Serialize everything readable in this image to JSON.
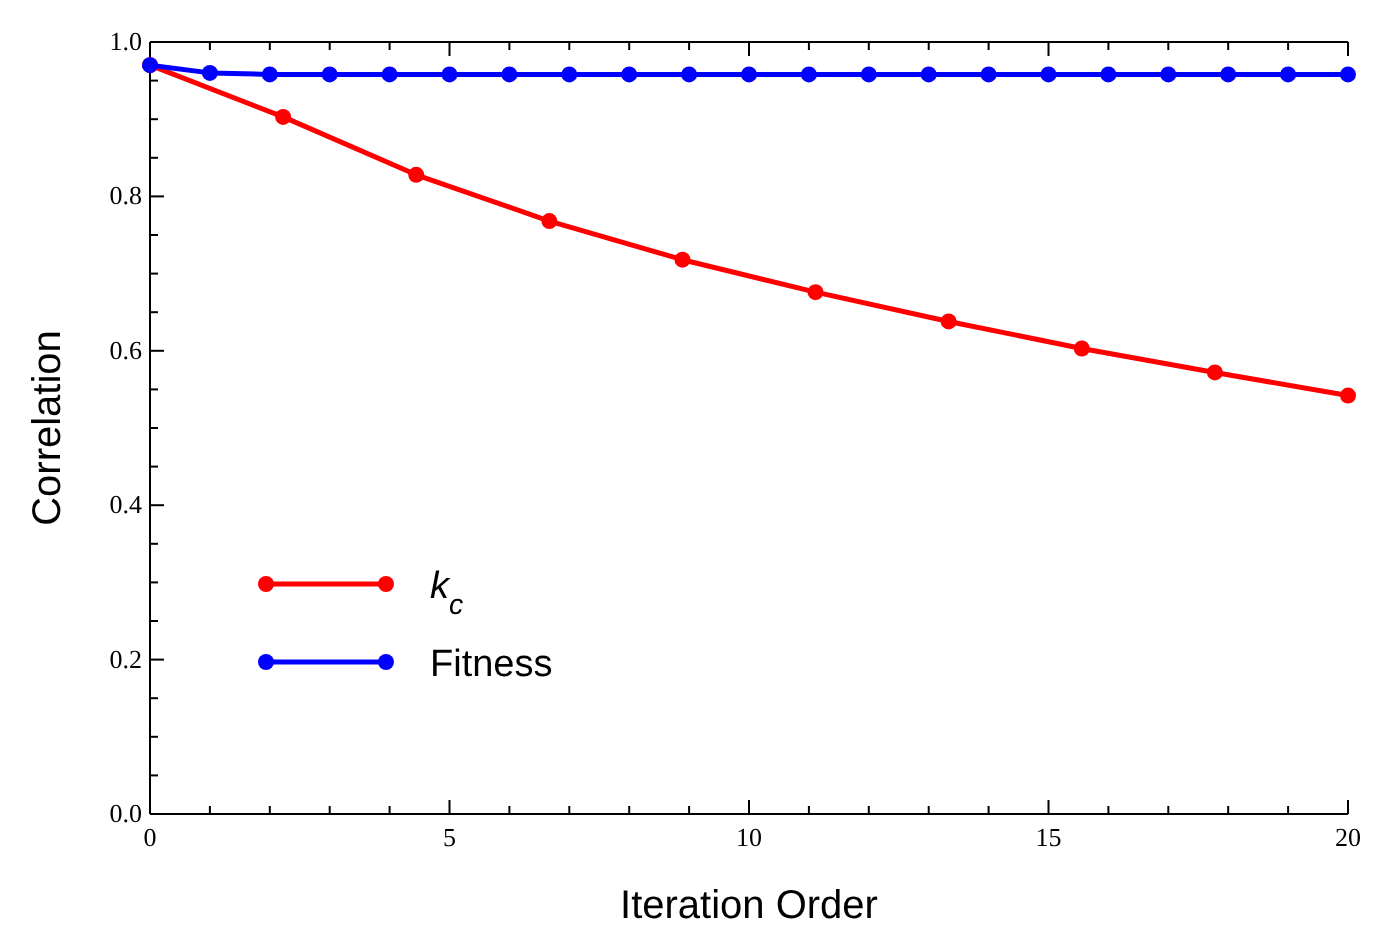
{
  "chart_data": {
    "type": "line",
    "xlabel": "Iteration Order",
    "ylabel": "Correlation",
    "xlim": [
      0,
      20
    ],
    "ylim": [
      0,
      1
    ],
    "xticks": [
      0,
      {
        "value": 1,
        "label": null
      },
      {
        "value": 2,
        "label": null
      },
      {
        "value": 3,
        "label": null
      },
      {
        "value": 4,
        "label": null
      },
      5,
      {
        "value": 6,
        "label": null
      },
      {
        "value": 7,
        "label": null
      },
      {
        "value": 8,
        "label": null
      },
      {
        "value": 9,
        "label": null
      },
      10,
      {
        "value": 11,
        "label": null
      },
      {
        "value": 12,
        "label": null
      },
      {
        "value": 13,
        "label": null
      },
      {
        "value": 14,
        "label": null
      },
      15,
      {
        "value": 16,
        "label": null
      },
      {
        "value": 17,
        "label": null
      },
      {
        "value": 18,
        "label": null
      },
      {
        "value": 19,
        "label": null
      },
      20
    ],
    "yticks": [
      {
        "value": 0,
        "label": "0.0"
      },
      {
        "value": 0.05,
        "label": null
      },
      {
        "value": 0.1,
        "label": null
      },
      {
        "value": 0.15,
        "label": null
      },
      0.2,
      {
        "value": 0.25,
        "label": null
      },
      {
        "value": 0.3,
        "label": null
      },
      {
        "value": 0.35,
        "label": null
      },
      0.4,
      {
        "value": 0.45,
        "label": null
      },
      {
        "value": 0.5,
        "label": null
      },
      {
        "value": 0.55,
        "label": null
      },
      0.6,
      {
        "value": 0.65,
        "label": null
      },
      {
        "value": 0.7,
        "label": null
      },
      {
        "value": 0.75,
        "label": null
      },
      0.8,
      {
        "value": 0.85,
        "label": null
      },
      {
        "value": 0.9,
        "label": null
      },
      {
        "value": 0.95,
        "label": null
      },
      {
        "value": 1,
        "label": "1.0"
      }
    ],
    "marker": "circle",
    "line_style": "solid",
    "legend": "bottom left",
    "grid": false,
    "series": [
      {
        "name": "k$_{c}$",
        "color": "#ff0000",
        "x": [
          0,
          2.222,
          4.444,
          6.667,
          8.889,
          11.111,
          13.333,
          15.556,
          17.778,
          20
        ],
        "values": [
          0.97,
          0.903,
          0.828,
          0.768,
          0.718,
          0.676,
          0.638,
          0.603,
          0.572,
          0.542
        ]
      },
      {
        "name": "Fitness",
        "color": "#0000ff",
        "x": [
          0,
          1,
          2,
          3,
          4,
          5,
          6,
          7,
          8,
          9,
          10,
          11,
          12,
          13,
          14,
          15,
          16,
          17,
          18,
          19,
          20
        ],
        "values": [
          0.97,
          0.96,
          0.958,
          0.958,
          0.958,
          0.958,
          0.958,
          0.958,
          0.958,
          0.958,
          0.958,
          0.958,
          0.958,
          0.958,
          0.958,
          0.958,
          0.958,
          0.958,
          0.958,
          0.958,
          0.958
        ]
      }
    ]
  }
}
